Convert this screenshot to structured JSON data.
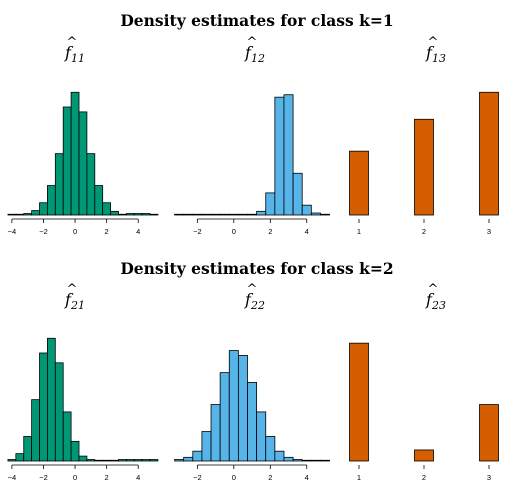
{
  "colors": {
    "green": "#009874",
    "blue": "#56b4e9",
    "orange": "#d55e00",
    "outline": "#000000"
  },
  "sections": [
    {
      "title": "Density estimates for class k=1"
    },
    {
      "title": "Density estimates for class k=2"
    }
  ],
  "chart_data": [
    {
      "type": "bar",
      "title": "f̂11",
      "title_base": "f",
      "title_sub": "11",
      "color": "green",
      "xlim": [
        -4.5,
        5
      ],
      "xticks": [
        -4,
        -2,
        0,
        2,
        4
      ],
      "tick_labels": [
        "−4",
        "−2",
        "0",
        "2",
        "4"
      ],
      "bin_start": -4.25,
      "bin_width": 0.5,
      "values": [
        0.003,
        0.003,
        0.006,
        0.018,
        0.05,
        0.12,
        0.25,
        0.44,
        0.5,
        0.42,
        0.25,
        0.12,
        0.05,
        0.015,
        0.003,
        0.006,
        0.006,
        0.006,
        0.003
      ],
      "ylim": [
        0,
        0.55
      ]
    },
    {
      "type": "bar",
      "title": "f̂12",
      "title_base": "f",
      "title_sub": "12",
      "color": "blue",
      "xlim": [
        -3.5,
        5
      ],
      "xticks": [
        -2,
        0,
        2,
        4
      ],
      "tick_labels": [
        "−2",
        "0",
        "2",
        "4"
      ],
      "bin_start": -3.25,
      "bin_width": 0.5,
      "values": [
        0.003,
        0.003,
        0.003,
        0.003,
        0.003,
        0.003,
        0.003,
        0.003,
        0.003,
        0.015,
        0.09,
        0.48,
        0.49,
        0.17,
        0.04,
        0.008,
        0.003
      ],
      "ylim": [
        0,
        0.55
      ]
    },
    {
      "type": "bar",
      "title": "f̂13",
      "title_base": "f",
      "title_sub": "13",
      "color": "orange",
      "categories": [
        "1",
        "2",
        "3"
      ],
      "values": [
        0.26,
        0.39,
        0.5
      ],
      "ylim": [
        0,
        0.55
      ]
    },
    {
      "type": "bar",
      "title": "f̂21",
      "title_base": "f",
      "title_sub": "21",
      "color": "green",
      "xlim": [
        -4.5,
        5
      ],
      "xticks": [
        -4,
        -2,
        0,
        2,
        4
      ],
      "tick_labels": [
        "−4",
        "−2",
        "0",
        "2",
        "4"
      ],
      "bin_start": -4.25,
      "bin_width": 0.5,
      "values": [
        0.006,
        0.03,
        0.1,
        0.25,
        0.44,
        0.5,
        0.4,
        0.2,
        0.08,
        0.02,
        0.006,
        0.003,
        0.003,
        0.003,
        0.006,
        0.006,
        0.006,
        0.006,
        0.006
      ],
      "ylim": [
        0,
        0.55
      ]
    },
    {
      "type": "bar",
      "title": "f̂22",
      "title_base": "f",
      "title_sub": "22",
      "color": "blue",
      "xlim": [
        -3.5,
        5
      ],
      "xticks": [
        -2,
        0,
        2,
        4
      ],
      "tick_labels": [
        "−2",
        "0",
        "2",
        "4"
      ],
      "bin_start": -3.25,
      "bin_width": 0.5,
      "values": [
        0.006,
        0.015,
        0.04,
        0.12,
        0.23,
        0.36,
        0.45,
        0.43,
        0.32,
        0.2,
        0.1,
        0.04,
        0.015,
        0.006,
        0.003,
        0.003,
        0.003
      ],
      "ylim": [
        0,
        0.55
      ]
    },
    {
      "type": "bar",
      "title": "f̂23",
      "title_base": "f",
      "title_sub": "23",
      "color": "orange",
      "categories": [
        "1",
        "2",
        "3"
      ],
      "values": [
        0.48,
        0.045,
        0.23
      ],
      "ylim": [
        0,
        0.55
      ]
    }
  ]
}
